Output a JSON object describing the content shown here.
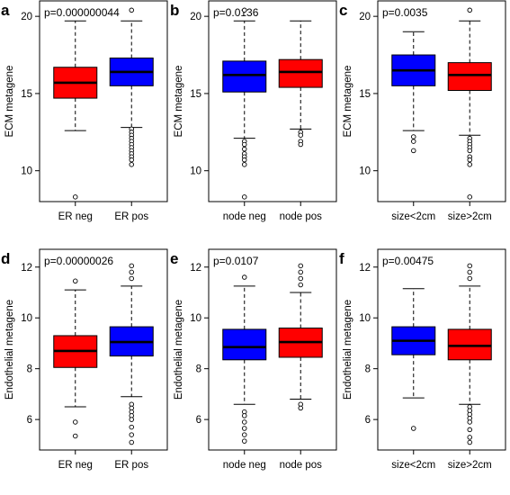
{
  "chart_data": [
    {
      "type": "boxplot",
      "panel_label": "a",
      "pvalue_text": "p=0.000000044",
      "ylabel": "ECM metagene",
      "ylim": [
        8,
        21
      ],
      "yticks": [
        10,
        15,
        20
      ],
      "categories": [
        "ER neg",
        "ER pos"
      ],
      "boxes": [
        {
          "category": "ER neg",
          "color": "#ff0000",
          "whisker_low": 12.6,
          "q1": 14.7,
          "median": 15.7,
          "q3": 16.7,
          "whisker_high": 19.7,
          "outliers": [
            8.3
          ]
        },
        {
          "category": "ER pos",
          "color": "#0000ff",
          "whisker_low": 12.8,
          "q1": 15.5,
          "median": 16.4,
          "q3": 17.3,
          "whisker_high": 19.7,
          "outliers": [
            12.7,
            12.5,
            12.3,
            12.1,
            11.9,
            11.7,
            11.5,
            11.3,
            11.1,
            10.9,
            10.7,
            10.4,
            20.4
          ]
        }
      ]
    },
    {
      "type": "boxplot",
      "panel_label": "b",
      "pvalue_text": "p=0.0136",
      "ylabel": "ECM metagene",
      "ylim": [
        8,
        21
      ],
      "yticks": [
        10,
        15,
        20
      ],
      "categories": [
        "node neg",
        "node pos"
      ],
      "boxes": [
        {
          "category": "node neg",
          "color": "#0000ff",
          "whisker_low": 12.1,
          "q1": 15.1,
          "median": 16.2,
          "q3": 17.1,
          "whisker_high": 19.7,
          "outliers": [
            11.9,
            11.7,
            11.4,
            11.1,
            10.9,
            10.7,
            10.4,
            8.3,
            20.4
          ]
        },
        {
          "category": "node pos",
          "color": "#ff0000",
          "whisker_low": 12.7,
          "q1": 15.4,
          "median": 16.4,
          "q3": 17.2,
          "whisker_high": 19.7,
          "outliers": [
            12.5,
            12.3,
            11.9,
            11.7
          ]
        }
      ]
    },
    {
      "type": "boxplot",
      "panel_label": "c",
      "pvalue_text": "p=0.0035",
      "ylabel": "ECM metagene",
      "ylim": [
        8,
        21
      ],
      "yticks": [
        10,
        15,
        20
      ],
      "categories": [
        "size<2cm",
        "size>2cm"
      ],
      "boxes": [
        {
          "category": "size<2cm",
          "color": "#0000ff",
          "whisker_low": 12.6,
          "q1": 15.5,
          "median": 16.5,
          "q3": 17.5,
          "whisker_high": 19.0,
          "outliers": [
            12.2,
            11.9,
            11.3
          ]
        },
        {
          "category": "size>2cm",
          "color": "#ff0000",
          "whisker_low": 12.3,
          "q1": 15.2,
          "median": 16.2,
          "q3": 17.0,
          "whisker_high": 19.7,
          "outliers": [
            12.1,
            11.9,
            11.7,
            11.5,
            11.3,
            10.9,
            10.7,
            10.4,
            8.3,
            20.4
          ]
        }
      ]
    },
    {
      "type": "boxplot",
      "panel_label": "d",
      "pvalue_text": "p=0.00000026",
      "ylabel": "Endothelial metagene",
      "ylim": [
        4.8,
        12.7
      ],
      "yticks": [
        6,
        8,
        10,
        12
      ],
      "categories": [
        "ER neg",
        "ER pos"
      ],
      "boxes": [
        {
          "category": "ER neg",
          "color": "#ff0000",
          "whisker_low": 6.5,
          "q1": 8.05,
          "median": 8.7,
          "q3": 9.3,
          "whisker_high": 11.1,
          "outliers": [
            5.9,
            5.35,
            11.45
          ]
        },
        {
          "category": "ER pos",
          "color": "#0000ff",
          "whisker_low": 6.9,
          "q1": 8.5,
          "median": 9.05,
          "q3": 9.65,
          "whisker_high": 11.25,
          "outliers": [
            6.6,
            6.45,
            6.3,
            6.15,
            6.0,
            5.7,
            5.4,
            5.1,
            11.55,
            11.8,
            12.05
          ]
        }
      ]
    },
    {
      "type": "boxplot",
      "panel_label": "e",
      "pvalue_text": "p=0.0107",
      "ylabel": "Endothelial metagene",
      "ylim": [
        4.8,
        12.7
      ],
      "yticks": [
        6,
        8,
        10,
        12
      ],
      "categories": [
        "node neg",
        "node pos"
      ],
      "boxes": [
        {
          "category": "node neg",
          "color": "#0000ff",
          "whisker_low": 6.6,
          "q1": 8.35,
          "median": 8.85,
          "q3": 9.55,
          "whisker_high": 11.25,
          "outliers": [
            6.3,
            6.15,
            5.9,
            5.65,
            5.4,
            5.15,
            11.6
          ]
        },
        {
          "category": "node pos",
          "color": "#ff0000",
          "whisker_low": 6.8,
          "q1": 8.45,
          "median": 9.05,
          "q3": 9.6,
          "whisker_high": 11.0,
          "outliers": [
            6.6,
            6.45,
            11.3,
            11.55,
            11.8,
            12.05
          ]
        }
      ]
    },
    {
      "type": "boxplot",
      "panel_label": "f",
      "pvalue_text": "p=0.00475",
      "ylabel": "Endothelial metagene",
      "ylim": [
        4.8,
        12.7
      ],
      "yticks": [
        6,
        8,
        10,
        12
      ],
      "categories": [
        "size<2cm",
        "size>2cm"
      ],
      "boxes": [
        {
          "category": "size<2cm",
          "color": "#0000ff",
          "whisker_low": 6.85,
          "q1": 8.55,
          "median": 9.1,
          "q3": 9.65,
          "whisker_high": 11.15,
          "outliers": [
            5.65
          ]
        },
        {
          "category": "size>2cm",
          "color": "#ff0000",
          "whisker_low": 6.6,
          "q1": 8.35,
          "median": 8.9,
          "q3": 9.55,
          "whisker_high": 11.25,
          "outliers": [
            6.5,
            6.35,
            6.2,
            6.05,
            5.9,
            5.6,
            5.3,
            5.1,
            11.55,
            11.8,
            12.05
          ]
        }
      ]
    }
  ]
}
